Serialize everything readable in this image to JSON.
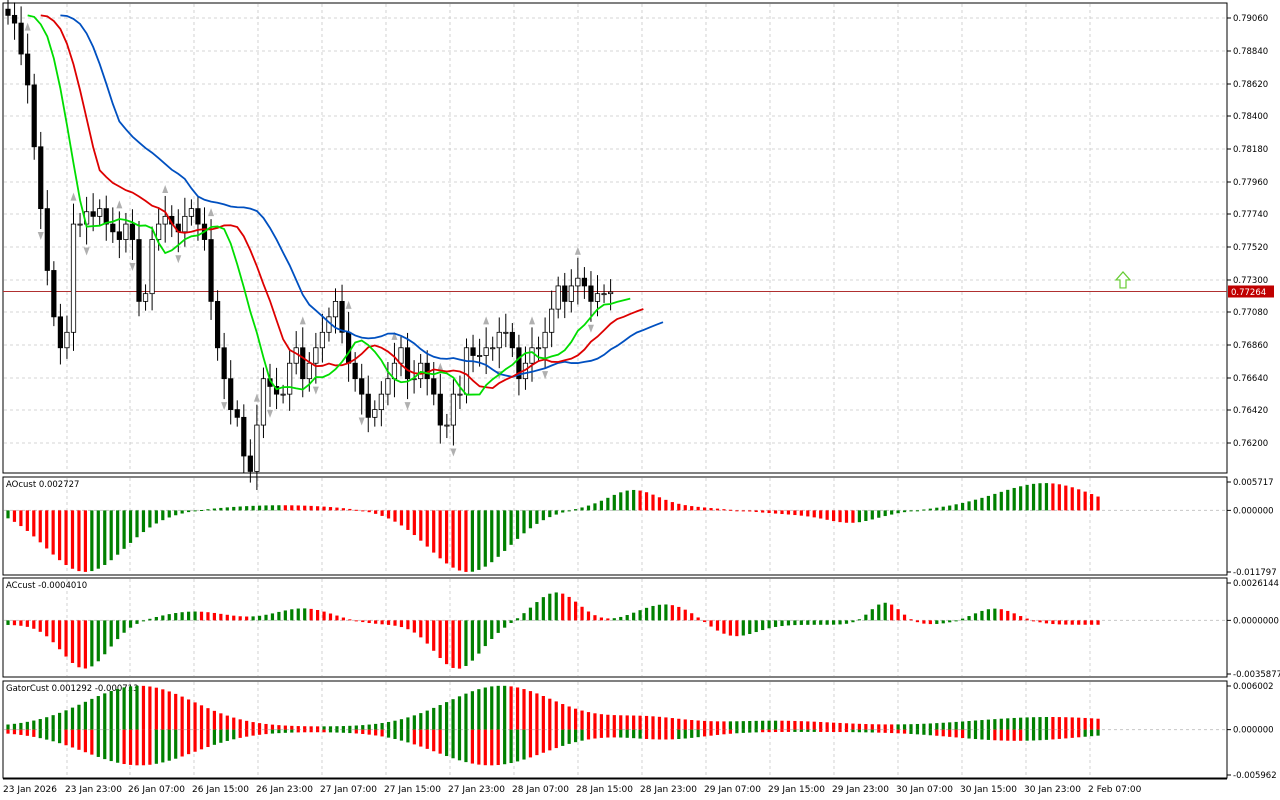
{
  "symbol": "",
  "current_price": {
    "label": "0.77264",
    "value": 0.77264,
    "color": "#c00000"
  },
  "colors": {
    "bull": "#008000",
    "bear": "#ff0000",
    "candle_body_up": "#ffffff",
    "candle_body_down": "#000000",
    "ma_fast": "#00dd00",
    "ma_mid": "#dd0000",
    "ma_slow": "#0050c0",
    "grid": "#c8c8c8",
    "axis": "#000000",
    "fractal": "#b0b0b0",
    "signal_arrow": "#66cc33"
  },
  "time_axis": {
    "labels": [
      "23 Jan 2026",
      "23 Jan 23:00",
      "26 Jan 07:00",
      "26 Jan 15:00",
      "26 Jan 23:00",
      "27 Jan 07:00",
      "27 Jan 15:00",
      "27 Jan 23:00",
      "28 Jan 07:00",
      "28 Jan 15:00",
      "28 Jan 23:00",
      "29 Jan 07:00",
      "29 Jan 15:00",
      "29 Jan 23:00",
      "30 Jan 07:00",
      "30 Jan 15:00",
      "30 Jan 23:00",
      "2 Feb 07:00"
    ]
  },
  "main_pane": {
    "price_labels": [
      "0.79060",
      "0.78840",
      "0.78620",
      "0.78400",
      "0.78180",
      "0.77960",
      "0.77740",
      "0.77520",
      "0.77300",
      "0.77080",
      "0.76860",
      "0.76640",
      "0.76420",
      "0.76200"
    ],
    "signal_arrow": {
      "icon": "up-arrow-outline-icon"
    }
  },
  "panes": [
    {
      "id": "ao",
      "label": "AOcust 0.002727",
      "scale_labels": [
        "0.005717",
        "0.000000",
        "-0.011797"
      ]
    },
    {
      "id": "ac",
      "label": "ACcust -0.0004010",
      "scale_labels": [
        "0.0026144",
        "0.0000000",
        "-0.0035877"
      ]
    },
    {
      "id": "gator",
      "label": "GatorCust 0.001292 -0.000713",
      "scale_labels": [
        "0.006002",
        "0.000000",
        "-0.005962"
      ]
    }
  ],
  "chart_data": [
    {
      "type": "candlestick",
      "title": "",
      "x_start": "23 Jan 2026",
      "bar_interval": "1 hour",
      "ylim": [
        0.7609,
        0.7913
      ],
      "price_points": [
        0.7905,
        0.79,
        0.788,
        0.786,
        0.782,
        0.778,
        0.774,
        0.771,
        0.769,
        0.77,
        0.777,
        0.777,
        0.7778,
        0.7775,
        0.778,
        0.777,
        0.7765,
        0.776,
        0.777,
        0.776,
        0.772,
        0.7725,
        0.776,
        0.777,
        0.7775,
        0.777,
        0.7765,
        0.7775,
        0.778,
        0.777,
        0.776,
        0.772,
        0.769,
        0.767,
        0.765,
        0.7645,
        0.762,
        0.761,
        0.764,
        0.767,
        0.7665,
        0.766,
        0.766,
        0.768,
        0.769,
        0.767,
        0.768,
        0.769,
        0.77,
        0.771,
        0.772,
        0.77,
        0.768,
        0.767,
        0.766,
        0.7645,
        0.765,
        0.766,
        0.767,
        0.768,
        0.769,
        0.767,
        0.767,
        0.768,
        0.767,
        0.766,
        0.764,
        0.764,
        0.766,
        0.766,
        0.769,
        0.7685,
        0.7685,
        0.769,
        0.769,
        0.77,
        0.77,
        0.769,
        0.767,
        0.768,
        0.769,
        0.769,
        0.77,
        0.7715,
        0.773,
        0.772,
        0.773,
        0.7735,
        0.773,
        0.772,
        0.7725,
        0.7725,
        0.7726
      ]
    },
    {
      "type": "bar",
      "name": "AOcust",
      "ylim": [
        -0.011797,
        0.005717
      ],
      "last_value": 0.002727,
      "values_approx": [
        0.0,
        -0.001,
        -0.003,
        -0.006,
        -0.009,
        -0.011,
        -0.011,
        -0.01,
        -0.009,
        -0.008,
        -0.006,
        -0.005,
        -0.004,
        -0.003,
        -0.002,
        -0.001,
        -0.0005,
        0.0,
        0.0,
        -0.002,
        -0.005,
        -0.008,
        -0.01,
        -0.011,
        -0.01,
        -0.008,
        -0.006,
        -0.004,
        -0.002,
        -0.001,
        0.0,
        0.001,
        0.002,
        0.003,
        0.003,
        0.002,
        0.001,
        0.0,
        -0.0005,
        -0.001,
        -0.001,
        -0.0005,
        -0.0002,
        0.0,
        0.0,
        -0.0005,
        -0.001,
        -0.002,
        -0.001,
        0.0,
        0.001,
        0.0015,
        0.0015,
        0.0015,
        0.002,
        0.003,
        0.004,
        0.0045,
        0.0045,
        0.004,
        0.0035,
        0.003,
        0.0027
      ]
    },
    {
      "type": "bar",
      "name": "ACcust",
      "ylim": [
        -0.0035877,
        0.0026144
      ],
      "last_value": -0.000401
    },
    {
      "type": "bar",
      "name": "GatorCust",
      "ylim": [
        -0.005962,
        0.006002
      ],
      "last_values": [
        0.001292,
        -0.000713
      ]
    }
  ]
}
